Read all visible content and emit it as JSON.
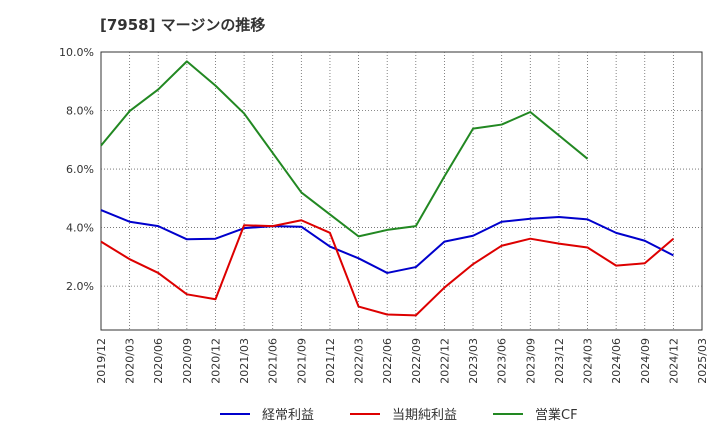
{
  "chart_data": {
    "type": "line",
    "title": "[7958]  マージンの推移",
    "xlabel": "",
    "ylabel": "",
    "x": [
      "2019/12",
      "2020/03",
      "2020/06",
      "2020/09",
      "2020/12",
      "2021/03",
      "2021/06",
      "2021/09",
      "2021/12",
      "2022/03",
      "2022/06",
      "2022/09",
      "2022/12",
      "2023/03",
      "2023/06",
      "2023/09",
      "2023/12",
      "2024/03",
      "2024/06",
      "2024/09",
      "2024/12",
      "2025/03"
    ],
    "ylim": [
      0.5,
      10.0
    ],
    "yticks": [
      2.0,
      4.0,
      6.0,
      8.0,
      10.0
    ],
    "ytick_labels": [
      "2.0%",
      "4.0%",
      "6.0%",
      "8.0%",
      "10.0%"
    ],
    "grid": true,
    "legend_position": "bottom",
    "series": [
      {
        "name": "経常利益",
        "color": "#0000cc",
        "values": [
          4.6,
          4.2,
          4.05,
          3.6,
          3.62,
          3.98,
          4.05,
          4.03,
          3.35,
          2.95,
          2.45,
          2.65,
          3.52,
          3.72,
          4.2,
          4.3,
          4.36,
          4.28,
          3.82,
          3.55,
          3.05,
          null
        ]
      },
      {
        "name": "当期純利益",
        "color": "#dd0000",
        "values": [
          3.52,
          2.92,
          2.45,
          1.72,
          1.55,
          4.08,
          4.05,
          4.25,
          3.82,
          1.3,
          1.03,
          1.0,
          1.95,
          2.75,
          3.38,
          3.62,
          3.45,
          3.32,
          2.7,
          2.78,
          3.62,
          null
        ]
      },
      {
        "name": "営業CF",
        "color": "#228822",
        "values": [
          6.8,
          7.98,
          8.72,
          9.68,
          8.85,
          7.9,
          6.55,
          5.2,
          4.45,
          3.7,
          3.92,
          4.05,
          5.75,
          7.38,
          7.52,
          7.95,
          7.15,
          6.35,
          null,
          null,
          null,
          null
        ]
      }
    ]
  }
}
